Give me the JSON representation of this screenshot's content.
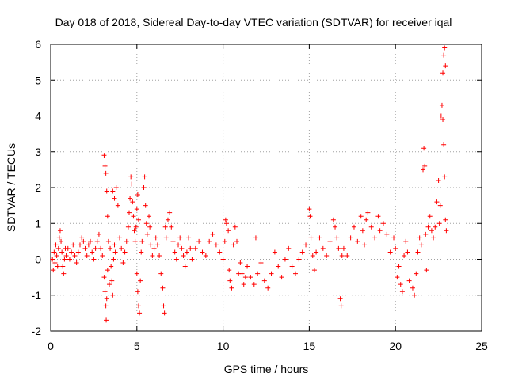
{
  "chart_data": {
    "type": "scatter",
    "title": "Day 018 of 2018, Sidereal Day-to-day VTEC variation (SDTVAR) for receiver iqal",
    "xlabel": "GPS time / hours",
    "ylabel": "SDTVAR / TECUs",
    "xlim": [
      0,
      25
    ],
    "ylim": [
      -2,
      6
    ],
    "x_ticks": [
      0,
      5,
      10,
      15,
      20,
      25
    ],
    "y_ticks": [
      -2,
      -1,
      0,
      1,
      2,
      3,
      4,
      5,
      6
    ],
    "x_tick_labels": [
      "0",
      "5",
      "10",
      "15",
      "20",
      "25"
    ],
    "y_tick_labels": [
      "-2",
      "-1",
      "0",
      "1",
      "2",
      "3",
      "4",
      "5",
      "6"
    ],
    "grid": true,
    "marker": "+",
    "series": [
      {
        "name": "SDTVAR",
        "color": "#ff0000",
        "points": [
          [
            0.1,
            0.0
          ],
          [
            0.15,
            -0.3
          ],
          [
            0.2,
            0.2
          ],
          [
            0.25,
            -0.1
          ],
          [
            0.3,
            0.4
          ],
          [
            0.35,
            0.1
          ],
          [
            0.4,
            -0.2
          ],
          [
            0.45,
            0.3
          ],
          [
            0.5,
            0.6
          ],
          [
            0.55,
            0.8
          ],
          [
            0.6,
            0.5
          ],
          [
            0.65,
            0.2
          ],
          [
            0.7,
            -0.2
          ],
          [
            0.75,
            -0.4
          ],
          [
            0.8,
            0.0
          ],
          [
            0.85,
            0.3
          ],
          [
            0.9,
            0.1
          ],
          [
            1.0,
            0.3
          ],
          [
            1.1,
            0.0
          ],
          [
            1.2,
            0.2
          ],
          [
            1.3,
            0.4
          ],
          [
            1.4,
            0.1
          ],
          [
            1.5,
            -0.1
          ],
          [
            1.6,
            0.2
          ],
          [
            1.7,
            0.4
          ],
          [
            1.8,
            0.6
          ],
          [
            1.9,
            0.5
          ],
          [
            2.0,
            0.3
          ],
          [
            2.1,
            0.1
          ],
          [
            2.2,
            0.4
          ],
          [
            2.3,
            0.5
          ],
          [
            2.4,
            0.2
          ],
          [
            2.5,
            0.0
          ],
          [
            2.6,
            0.3
          ],
          [
            2.7,
            0.5
          ],
          [
            2.8,
            0.7
          ],
          [
            2.9,
            0.3
          ],
          [
            3.0,
            0.1
          ],
          [
            3.1,
            -0.5
          ],
          [
            3.15,
            -0.9
          ],
          [
            3.2,
            -1.3
          ],
          [
            3.22,
            -1.7
          ],
          [
            3.25,
            -1.1
          ],
          [
            3.1,
            2.9
          ],
          [
            3.15,
            2.6
          ],
          [
            3.2,
            2.4
          ],
          [
            3.25,
            1.9
          ],
          [
            3.3,
            1.2
          ],
          [
            3.35,
            0.5
          ],
          [
            3.3,
            -0.3
          ],
          [
            3.4,
            -0.7
          ],
          [
            3.45,
            0.3
          ],
          [
            3.5,
            -0.2
          ],
          [
            3.55,
            -0.6
          ],
          [
            3.6,
            -1.0
          ],
          [
            3.65,
            0.0
          ],
          [
            3.7,
            0.4
          ],
          [
            3.75,
            0.2
          ],
          [
            3.6,
            1.9
          ],
          [
            3.7,
            1.7
          ],
          [
            3.8,
            2.0
          ],
          [
            3.9,
            1.5
          ],
          [
            4.0,
            0.6
          ],
          [
            4.1,
            0.3
          ],
          [
            4.2,
            -0.1
          ],
          [
            4.3,
            0.2
          ],
          [
            4.4,
            0.5
          ],
          [
            4.5,
            0.9
          ],
          [
            4.55,
            1.3
          ],
          [
            4.6,
            1.7
          ],
          [
            4.65,
            2.3
          ],
          [
            4.7,
            2.1
          ],
          [
            4.75,
            1.6
          ],
          [
            4.8,
            1.2
          ],
          [
            4.85,
            0.8
          ],
          [
            4.9,
            0.5
          ],
          [
            4.95,
            0.9
          ],
          [
            5.0,
            1.4
          ],
          [
            5.05,
            1.8
          ],
          [
            5.1,
            1.1
          ],
          [
            5.0,
            -0.4
          ],
          [
            5.05,
            -0.9
          ],
          [
            5.1,
            -1.3
          ],
          [
            5.15,
            -1.5
          ],
          [
            5.2,
            -0.6
          ],
          [
            5.25,
            0.2
          ],
          [
            5.3,
            0.5
          ],
          [
            5.4,
            2.0
          ],
          [
            5.45,
            2.3
          ],
          [
            5.5,
            1.5
          ],
          [
            5.55,
            1.0
          ],
          [
            5.6,
            0.7
          ],
          [
            5.7,
            1.2
          ],
          [
            5.75,
            0.9
          ],
          [
            5.8,
            0.4
          ],
          [
            5.9,
            0.1
          ],
          [
            6.0,
            0.3
          ],
          [
            6.1,
            0.6
          ],
          [
            6.2,
            0.4
          ],
          [
            6.3,
            0.1
          ],
          [
            6.4,
            -0.4
          ],
          [
            6.5,
            -0.8
          ],
          [
            6.55,
            -1.3
          ],
          [
            6.6,
            -1.5
          ],
          [
            6.65,
            0.9
          ],
          [
            6.7,
            0.6
          ],
          [
            6.8,
            1.1
          ],
          [
            6.9,
            1.3
          ],
          [
            7.0,
            0.9
          ],
          [
            7.1,
            0.5
          ],
          [
            7.2,
            0.2
          ],
          [
            7.3,
            0.0
          ],
          [
            7.4,
            0.4
          ],
          [
            7.5,
            0.6
          ],
          [
            7.6,
            0.3
          ],
          [
            7.7,
            0.1
          ],
          [
            7.8,
            -0.2
          ],
          [
            7.9,
            0.2
          ],
          [
            8.0,
            0.6
          ],
          [
            8.1,
            0.3
          ],
          [
            8.2,
            0.0
          ],
          [
            8.4,
            0.3
          ],
          [
            8.6,
            0.5
          ],
          [
            8.8,
            0.2
          ],
          [
            9.0,
            0.1
          ],
          [
            9.2,
            0.5
          ],
          [
            9.4,
            0.7
          ],
          [
            9.6,
            0.4
          ],
          [
            9.8,
            0.2
          ],
          [
            10.0,
            0.0
          ],
          [
            10.1,
            0.5
          ],
          [
            10.15,
            1.1
          ],
          [
            10.2,
            1.0
          ],
          [
            10.3,
            0.8
          ],
          [
            10.35,
            -0.3
          ],
          [
            10.4,
            -0.6
          ],
          [
            10.5,
            -0.8
          ],
          [
            10.6,
            0.4
          ],
          [
            10.7,
            0.9
          ],
          [
            10.8,
            0.5
          ],
          [
            10.9,
            -0.4
          ],
          [
            11.0,
            -0.1
          ],
          [
            11.1,
            -0.4
          ],
          [
            11.2,
            -0.7
          ],
          [
            11.3,
            -0.5
          ],
          [
            11.4,
            -0.2
          ],
          [
            11.6,
            -0.5
          ],
          [
            11.8,
            -0.7
          ],
          [
            11.9,
            0.6
          ],
          [
            12.0,
            -0.4
          ],
          [
            12.2,
            -0.1
          ],
          [
            12.4,
            -0.6
          ],
          [
            12.6,
            -0.8
          ],
          [
            12.8,
            -0.4
          ],
          [
            13.0,
            0.2
          ],
          [
            13.2,
            -0.2
          ],
          [
            13.4,
            -0.5
          ],
          [
            13.6,
            0.0
          ],
          [
            13.8,
            0.3
          ],
          [
            14.0,
            -0.2
          ],
          [
            14.2,
            -0.4
          ],
          [
            14.4,
            0.0
          ],
          [
            14.6,
            0.2
          ],
          [
            14.8,
            0.4
          ],
          [
            15.0,
            1.4
          ],
          [
            15.05,
            1.2
          ],
          [
            15.1,
            0.6
          ],
          [
            15.2,
            0.1
          ],
          [
            15.3,
            -0.3
          ],
          [
            15.4,
            0.2
          ],
          [
            15.6,
            0.6
          ],
          [
            15.8,
            0.3
          ],
          [
            16.0,
            0.1
          ],
          [
            16.2,
            0.5
          ],
          [
            16.4,
            1.1
          ],
          [
            16.5,
            0.9
          ],
          [
            16.6,
            0.6
          ],
          [
            16.7,
            0.3
          ],
          [
            16.8,
            -1.1
          ],
          [
            16.85,
            -1.3
          ],
          [
            16.9,
            0.1
          ],
          [
            17.0,
            0.3
          ],
          [
            17.2,
            0.1
          ],
          [
            17.4,
            0.6
          ],
          [
            17.6,
            0.9
          ],
          [
            17.8,
            0.5
          ],
          [
            18.0,
            1.2
          ],
          [
            18.1,
            0.8
          ],
          [
            18.2,
            0.4
          ],
          [
            18.3,
            1.1
          ],
          [
            18.4,
            1.3
          ],
          [
            18.6,
            0.9
          ],
          [
            18.8,
            0.6
          ],
          [
            19.0,
            1.2
          ],
          [
            19.1,
            0.8
          ],
          [
            19.3,
            1.0
          ],
          [
            19.5,
            0.7
          ],
          [
            19.7,
            0.2
          ],
          [
            19.9,
            0.6
          ],
          [
            20.0,
            0.3
          ],
          [
            20.1,
            -0.5
          ],
          [
            20.2,
            -0.2
          ],
          [
            20.3,
            -0.7
          ],
          [
            20.4,
            -0.9
          ],
          [
            20.5,
            0.1
          ],
          [
            20.6,
            0.5
          ],
          [
            20.7,
            0.2
          ],
          [
            20.8,
            -0.6
          ],
          [
            21.0,
            -0.8
          ],
          [
            21.1,
            -1.0
          ],
          [
            21.2,
            -0.4
          ],
          [
            21.3,
            0.2
          ],
          [
            21.4,
            0.6
          ],
          [
            21.5,
            0.4
          ],
          [
            21.6,
            2.5
          ],
          [
            21.65,
            3.1
          ],
          [
            21.7,
            2.6
          ],
          [
            21.75,
            0.7
          ],
          [
            21.8,
            -0.3
          ],
          [
            21.9,
            0.9
          ],
          [
            22.0,
            1.2
          ],
          [
            22.1,
            0.8
          ],
          [
            22.2,
            0.6
          ],
          [
            22.3,
            0.9
          ],
          [
            22.4,
            1.6
          ],
          [
            22.5,
            2.2
          ],
          [
            22.55,
            1.0
          ],
          [
            22.6,
            1.5
          ],
          [
            22.65,
            4.0
          ],
          [
            22.7,
            4.3
          ],
          [
            22.75,
            5.2
          ],
          [
            22.8,
            5.7
          ],
          [
            22.85,
            5.9
          ],
          [
            22.9,
            5.4
          ],
          [
            22.75,
            3.9
          ],
          [
            22.8,
            3.2
          ],
          [
            22.85,
            2.3
          ],
          [
            22.9,
            1.1
          ],
          [
            22.95,
            0.8
          ]
        ]
      }
    ]
  }
}
